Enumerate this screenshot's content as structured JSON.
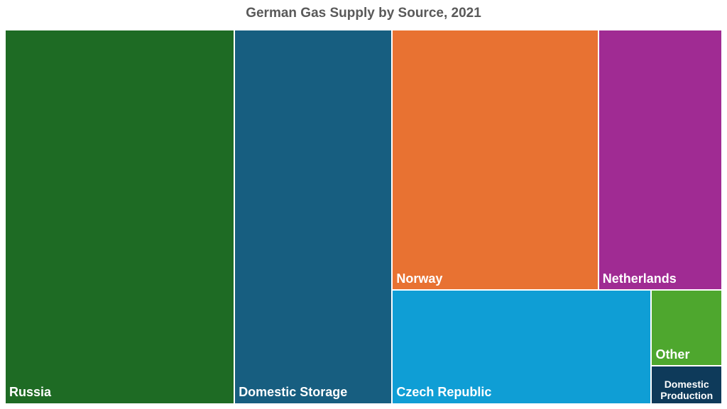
{
  "chart_data": {
    "type": "treemap",
    "title": "German Gas Supply by Source, 2021",
    "categories": [
      "Russia",
      "Domestic Storage",
      "Norway",
      "Netherlands",
      "Czech Republic",
      "Other",
      "Domestic Production"
    ],
    "values": [
      32,
      22,
      20,
      12,
      11,
      2,
      1
    ],
    "colors": [
      "#1e6b24",
      "#175e80",
      "#e87232",
      "#a02b93",
      "#0f9ed5",
      "#4ea72e",
      "#0e3a5a"
    ]
  }
}
